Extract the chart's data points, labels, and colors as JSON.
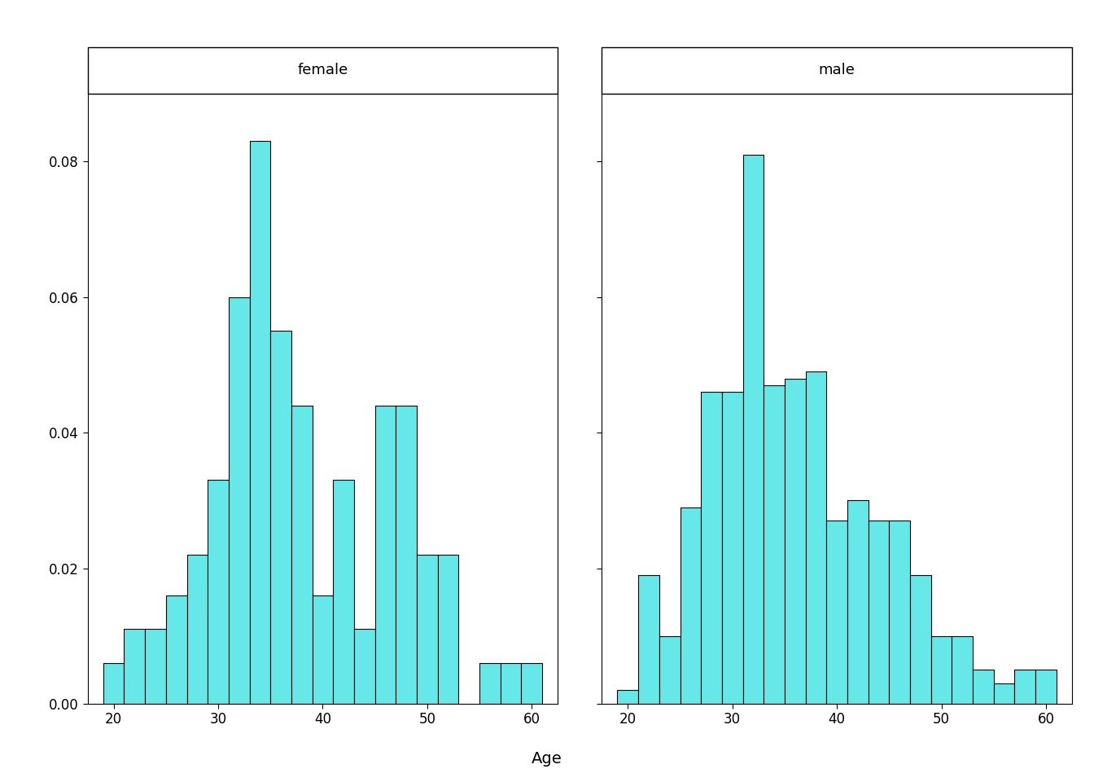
{
  "panel_label_female": "female",
  "panel_label_male": "male",
  "xlabel": "Age",
  "bar_color": "#67E8E8",
  "bar_edgecolor": "#000000",
  "background_color": "#FFFFFF",
  "xlim": [
    17.5,
    62.5
  ],
  "ylim": [
    0.0,
    0.09
  ],
  "yticks": [
    0.0,
    0.02,
    0.04,
    0.06,
    0.08
  ],
  "xticks": [
    20,
    30,
    40,
    50,
    60
  ],
  "female_bin_starts": [
    19,
    21,
    23,
    25,
    27,
    29,
    31,
    33,
    35,
    37,
    39,
    41,
    43,
    45,
    47,
    49,
    51,
    53,
    55,
    57,
    59
  ],
  "female_heights": [
    0.006,
    0.011,
    0.011,
    0.016,
    0.022,
    0.033,
    0.06,
    0.083,
    0.055,
    0.044,
    0.016,
    0.033,
    0.011,
    0.044,
    0.044,
    0.022,
    0.022,
    0.0,
    0.006,
    0.006,
    0.006
  ],
  "male_bin_starts": [
    19,
    21,
    23,
    25,
    27,
    29,
    31,
    33,
    35,
    37,
    39,
    41,
    43,
    45,
    47,
    49,
    51,
    53,
    55,
    57,
    59
  ],
  "male_heights": [
    0.002,
    0.019,
    0.01,
    0.029,
    0.046,
    0.046,
    0.081,
    0.047,
    0.048,
    0.049,
    0.027,
    0.03,
    0.027,
    0.027,
    0.019,
    0.01,
    0.01,
    0.005,
    0.003,
    0.005,
    0.005
  ],
  "bin_width": 2
}
